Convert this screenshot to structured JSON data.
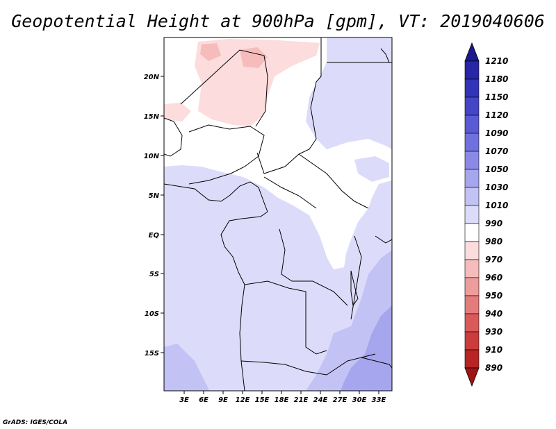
{
  "title": "Geopotential Height at 900hPa [gpm], VT: 2019040606",
  "credit": "GrADS: IGES/COLA",
  "map": {
    "lat_ticks": [
      "20N",
      "15N",
      "10N",
      "5N",
      "EQ",
      "5S",
      "10S",
      "15S"
    ],
    "lon_ticks": [
      "3E",
      "6E",
      "9E",
      "12E",
      "15E",
      "18E",
      "21E",
      "24E",
      "27E",
      "30E",
      "33E"
    ]
  },
  "colorbar": {
    "levels": [
      "1210",
      "1180",
      "1150",
      "1120",
      "1090",
      "1070",
      "1050",
      "1030",
      "1010",
      "990",
      "980",
      "970",
      "960",
      "950",
      "940",
      "930",
      "910",
      "890"
    ],
    "colors": [
      "#1a1a8c",
      "#2626a6",
      "#3333b8",
      "#4545c8",
      "#5a5ad4",
      "#7070de",
      "#8a8ae6",
      "#a6a6ee",
      "#c2c2f4",
      "#dcdcfa",
      "#ffffff",
      "#fcdcdc",
      "#f6bcbc",
      "#ee9c9c",
      "#e47c7c",
      "#da5a5a",
      "#cc3c3c",
      "#b82424",
      "#a01414"
    ]
  },
  "colors": {
    "land_low": "#fcdcdc",
    "neutral": "#ffffff",
    "band_1010": "#dcdcfa",
    "band_1030": "#c2c2f4",
    "band_1050": "#a6a6ee"
  }
}
